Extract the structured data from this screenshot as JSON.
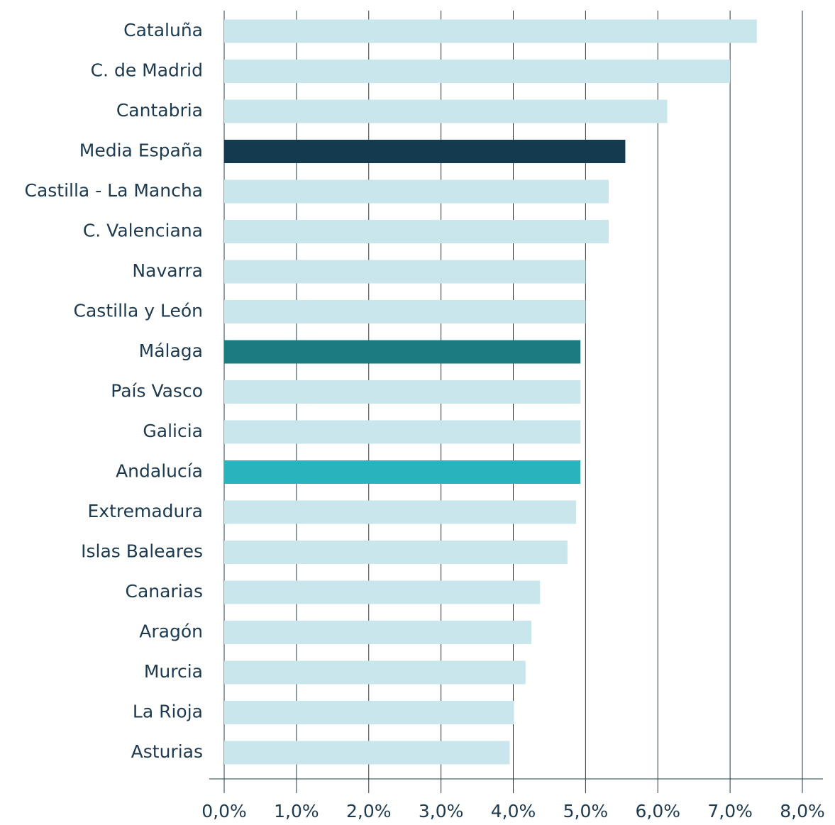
{
  "chart_data": {
    "type": "barh",
    "categories": [
      "Cataluña",
      "C. de Madrid",
      "Cantabria",
      "Media España",
      "Castilla - La Mancha",
      "C. Valenciana",
      "Navarra",
      "Castilla y León",
      "Málaga",
      "País Vasco",
      "Galicia",
      "Andalucía",
      "Extremadura",
      "Islas Baleares",
      "Canarias",
      "Aragón",
      "Murcia",
      "La Rioja",
      "Asturias"
    ],
    "values": [
      7.37,
      7.0,
      6.13,
      5.55,
      5.32,
      5.32,
      5.0,
      5.0,
      4.93,
      4.93,
      4.93,
      4.93,
      4.87,
      4.75,
      4.37,
      4.25,
      4.17,
      4.01,
      3.95
    ],
    "colors": [
      "#c9e6ec",
      "#c9e6ec",
      "#c9e6ec",
      "#143a50",
      "#c9e6ec",
      "#c9e6ec",
      "#c9e6ec",
      "#c9e6ec",
      "#1b7b80",
      "#c9e6ec",
      "#c9e6ec",
      "#29b3bd",
      "#c9e6ec",
      "#c9e6ec",
      "#c9e6ec",
      "#c9e6ec",
      "#c9e6ec",
      "#c9e6ec",
      "#c9e6ec"
    ],
    "xlim": [
      0,
      8
    ],
    "xticks": [
      {
        "value": 0,
        "label": "0,0%"
      },
      {
        "value": 1,
        "label": "1,0%"
      },
      {
        "value": 2,
        "label": "2,0%"
      },
      {
        "value": 3,
        "label": "3,0%"
      },
      {
        "value": 4,
        "label": "4,0%"
      },
      {
        "value": 5,
        "label": "5,0%"
      },
      {
        "value": 6,
        "label": "6,0%"
      },
      {
        "value": 7,
        "label": "7,0%"
      },
      {
        "value": 8,
        "label": "8,0%"
      }
    ],
    "grid": true
  }
}
